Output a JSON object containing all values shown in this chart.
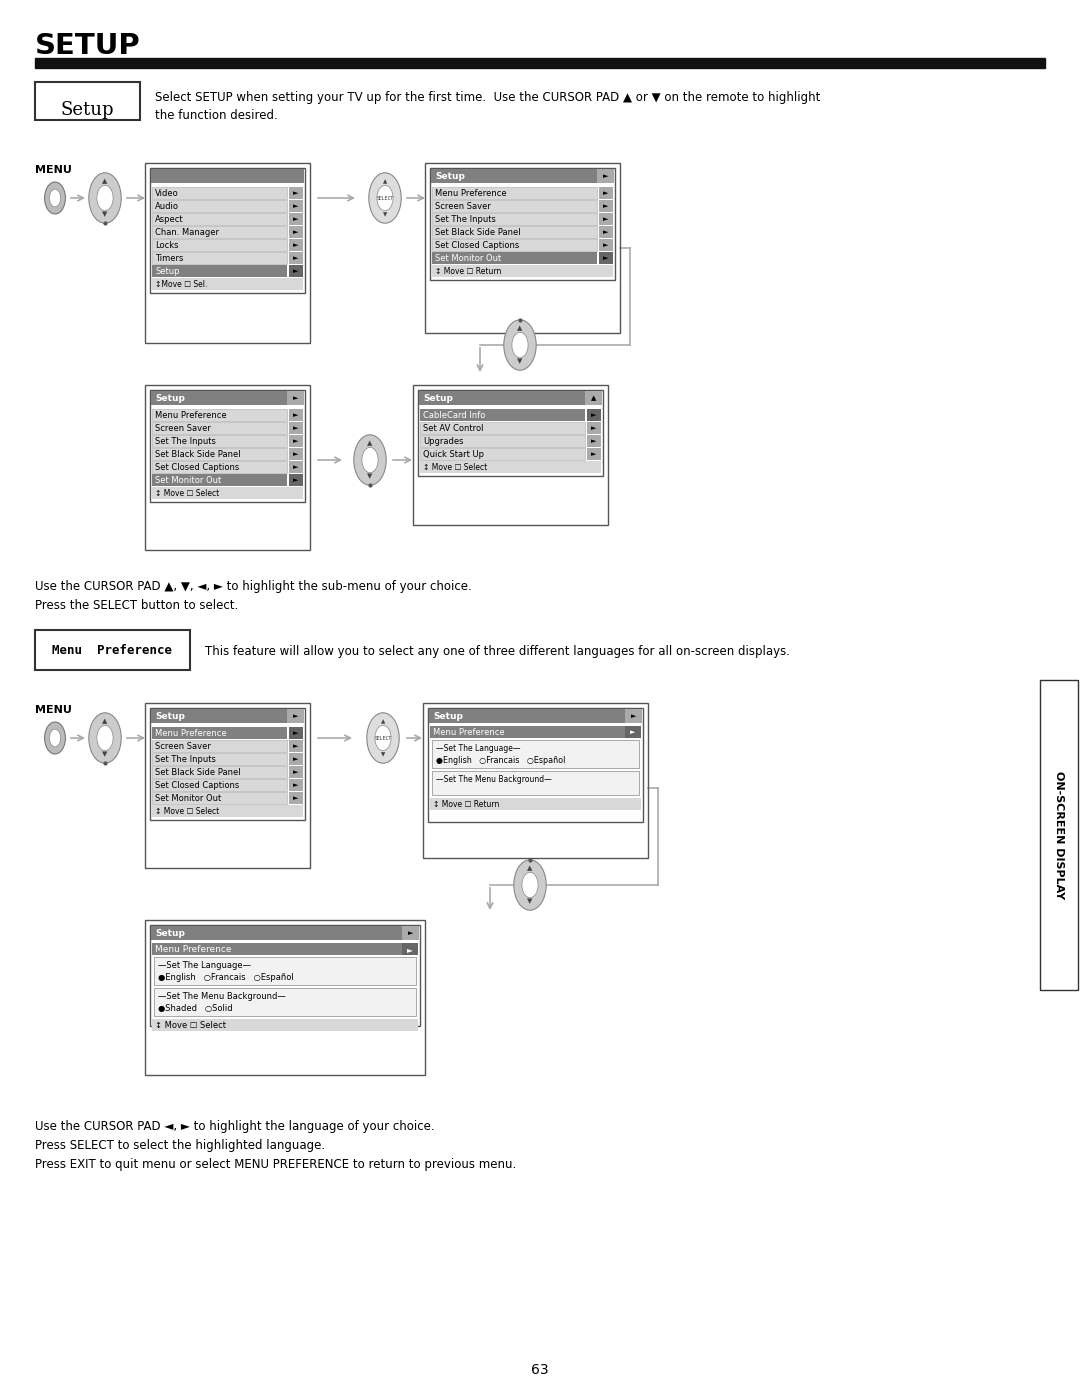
{
  "title": "SETUP",
  "setup_desc": "Select SETUP when setting your TV up for the first time.  Use the CURSOR PAD ▲ or ▼ on the remote to highlight\nthe function desired.",
  "setup_label": "Setup",
  "menu_pref_label": "Menu  Preference",
  "menu_pref_desc": "This feature will allow you to select any one of three different languages for all on-screen displays.",
  "cursor_pad_text1": "Use the CURSOR PAD ▲, ▼, ◄, ► to highlight the sub-menu of your choice.\nPress the SELECT button to select.",
  "cursor_pad_text2": "Use the CURSOR PAD ◄, ► to highlight the language of your choice.\nPress SELECT to select the highlighted language.\nPress EXIT to quit menu or select MENU PREFERENCE to return to previous menu.",
  "page_num": "63",
  "sidebar_text": "ON-SCREEN DISPLAY",
  "bg_color": "#ffffff",
  "text_color": "#000000"
}
